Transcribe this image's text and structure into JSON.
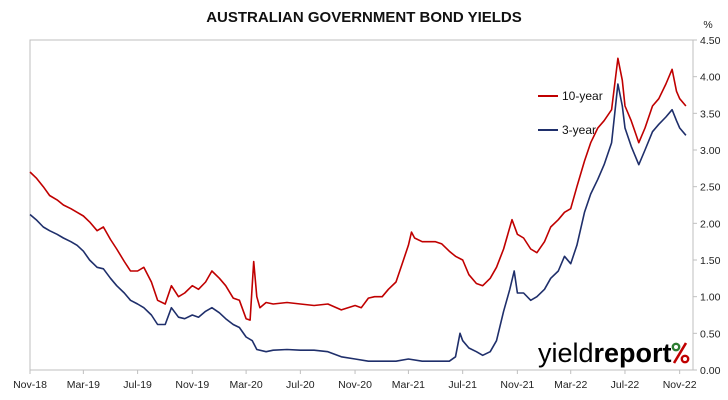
{
  "chart_data": {
    "type": "line",
    "title": "AUSTRALIAN GOVERNMENT BOND YIELDS",
    "ylabel": "%",
    "ylim": [
      0,
      4.5
    ],
    "y_ticks": [
      "0.00",
      "0.50",
      "1.00",
      "1.50",
      "2.00",
      "2.50",
      "3.00",
      "3.50",
      "4.00",
      "4.50"
    ],
    "y_axis_position": "right",
    "grid": false,
    "legend_placement": "top-right",
    "x_domain": [
      "2018-11-01",
      "2022-12-01"
    ],
    "x_ticks": [
      {
        "date": "2018-11-01",
        "label": "Nov-18"
      },
      {
        "date": "2019-03-01",
        "label": "Mar-19"
      },
      {
        "date": "2019-07-01",
        "label": "Jul-19"
      },
      {
        "date": "2019-11-01",
        "label": "Nov-19"
      },
      {
        "date": "2020-03-01",
        "label": "Mar-20"
      },
      {
        "date": "2020-07-01",
        "label": "Jul-20"
      },
      {
        "date": "2020-11-01",
        "label": "Nov-20"
      },
      {
        "date": "2021-03-01",
        "label": "Mar-21"
      },
      {
        "date": "2021-07-01",
        "label": "Jul-21"
      },
      {
        "date": "2021-11-01",
        "label": "Nov-21"
      },
      {
        "date": "2022-03-01",
        "label": "Mar-22"
      },
      {
        "date": "2022-07-01",
        "label": "Jul-22"
      },
      {
        "date": "2022-11-01",
        "label": "Nov-22"
      }
    ],
    "series": [
      {
        "name": "10-year",
        "color": "#c00000",
        "points": [
          [
            "2018-11-01",
            2.7
          ],
          [
            "2018-11-15",
            2.62
          ],
          [
            "2018-12-01",
            2.5
          ],
          [
            "2018-12-15",
            2.38
          ],
          [
            "2019-01-01",
            2.32
          ],
          [
            "2019-01-15",
            2.25
          ],
          [
            "2019-02-01",
            2.2
          ],
          [
            "2019-02-15",
            2.15
          ],
          [
            "2019-03-01",
            2.1
          ],
          [
            "2019-03-15",
            2.02
          ],
          [
            "2019-04-01",
            1.9
          ],
          [
            "2019-04-15",
            1.95
          ],
          [
            "2019-05-01",
            1.78
          ],
          [
            "2019-05-15",
            1.65
          ],
          [
            "2019-06-01",
            1.48
          ],
          [
            "2019-06-15",
            1.35
          ],
          [
            "2019-07-01",
            1.35
          ],
          [
            "2019-07-15",
            1.4
          ],
          [
            "2019-08-01",
            1.2
          ],
          [
            "2019-08-15",
            0.95
          ],
          [
            "2019-09-01",
            0.9
          ],
          [
            "2019-09-15",
            1.15
          ],
          [
            "2019-10-01",
            1.0
          ],
          [
            "2019-10-15",
            1.05
          ],
          [
            "2019-11-01",
            1.15
          ],
          [
            "2019-11-15",
            1.1
          ],
          [
            "2019-12-01",
            1.2
          ],
          [
            "2019-12-15",
            1.35
          ],
          [
            "2020-01-01",
            1.25
          ],
          [
            "2020-01-15",
            1.15
          ],
          [
            "2020-02-01",
            0.98
          ],
          [
            "2020-02-15",
            0.95
          ],
          [
            "2020-03-01",
            0.7
          ],
          [
            "2020-03-10",
            0.68
          ],
          [
            "2020-03-18",
            1.48
          ],
          [
            "2020-03-25",
            1.0
          ],
          [
            "2020-04-01",
            0.85
          ],
          [
            "2020-04-15",
            0.92
          ],
          [
            "2020-05-01",
            0.9
          ],
          [
            "2020-06-01",
            0.92
          ],
          [
            "2020-07-01",
            0.9
          ],
          [
            "2020-08-01",
            0.88
          ],
          [
            "2020-09-01",
            0.9
          ],
          [
            "2020-10-01",
            0.82
          ],
          [
            "2020-11-01",
            0.88
          ],
          [
            "2020-11-15",
            0.85
          ],
          [
            "2020-12-01",
            0.98
          ],
          [
            "2020-12-15",
            1.0
          ],
          [
            "2021-01-01",
            1.0
          ],
          [
            "2021-01-15",
            1.1
          ],
          [
            "2021-02-01",
            1.2
          ],
          [
            "2021-02-15",
            1.45
          ],
          [
            "2021-03-01",
            1.7
          ],
          [
            "2021-03-08",
            1.88
          ],
          [
            "2021-03-15",
            1.8
          ],
          [
            "2021-04-01",
            1.75
          ],
          [
            "2021-05-01",
            1.75
          ],
          [
            "2021-05-15",
            1.72
          ],
          [
            "2021-06-01",
            1.62
          ],
          [
            "2021-06-15",
            1.55
          ],
          [
            "2021-07-01",
            1.5
          ],
          [
            "2021-07-15",
            1.3
          ],
          [
            "2021-08-01",
            1.18
          ],
          [
            "2021-08-15",
            1.15
          ],
          [
            "2021-09-01",
            1.25
          ],
          [
            "2021-09-15",
            1.4
          ],
          [
            "2021-10-01",
            1.65
          ],
          [
            "2021-10-20",
            2.05
          ],
          [
            "2021-11-01",
            1.85
          ],
          [
            "2021-11-15",
            1.8
          ],
          [
            "2021-12-01",
            1.65
          ],
          [
            "2021-12-15",
            1.6
          ],
          [
            "2022-01-01",
            1.75
          ],
          [
            "2022-01-15",
            1.95
          ],
          [
            "2022-02-01",
            2.05
          ],
          [
            "2022-02-15",
            2.15
          ],
          [
            "2022-03-01",
            2.2
          ],
          [
            "2022-03-15",
            2.5
          ],
          [
            "2022-04-01",
            2.85
          ],
          [
            "2022-04-15",
            3.1
          ],
          [
            "2022-05-01",
            3.3
          ],
          [
            "2022-05-15",
            3.4
          ],
          [
            "2022-06-01",
            3.55
          ],
          [
            "2022-06-15",
            4.25
          ],
          [
            "2022-06-25",
            3.95
          ],
          [
            "2022-07-01",
            3.6
          ],
          [
            "2022-07-15",
            3.4
          ],
          [
            "2022-08-01",
            3.1
          ],
          [
            "2022-08-15",
            3.3
          ],
          [
            "2022-09-01",
            3.6
          ],
          [
            "2022-09-15",
            3.7
          ],
          [
            "2022-10-01",
            3.9
          ],
          [
            "2022-10-15",
            4.1
          ],
          [
            "2022-10-25",
            3.8
          ],
          [
            "2022-11-01",
            3.7
          ],
          [
            "2022-11-15",
            3.6
          ]
        ]
      },
      {
        "name": "3-year",
        "color": "#1f2f6b",
        "points": [
          [
            "2018-11-01",
            2.12
          ],
          [
            "2018-11-15",
            2.05
          ],
          [
            "2018-12-01",
            1.95
          ],
          [
            "2018-12-15",
            1.9
          ],
          [
            "2019-01-01",
            1.85
          ],
          [
            "2019-01-15",
            1.8
          ],
          [
            "2019-02-01",
            1.75
          ],
          [
            "2019-02-15",
            1.7
          ],
          [
            "2019-03-01",
            1.62
          ],
          [
            "2019-03-15",
            1.5
          ],
          [
            "2019-04-01",
            1.4
          ],
          [
            "2019-04-15",
            1.38
          ],
          [
            "2019-05-01",
            1.25
          ],
          [
            "2019-05-15",
            1.15
          ],
          [
            "2019-06-01",
            1.05
          ],
          [
            "2019-06-15",
            0.95
          ],
          [
            "2019-07-01",
            0.9
          ],
          [
            "2019-07-15",
            0.85
          ],
          [
            "2019-08-01",
            0.75
          ],
          [
            "2019-08-15",
            0.62
          ],
          [
            "2019-09-01",
            0.62
          ],
          [
            "2019-09-15",
            0.85
          ],
          [
            "2019-10-01",
            0.72
          ],
          [
            "2019-10-15",
            0.7
          ],
          [
            "2019-11-01",
            0.75
          ],
          [
            "2019-11-15",
            0.72
          ],
          [
            "2019-12-01",
            0.8
          ],
          [
            "2019-12-15",
            0.85
          ],
          [
            "2020-01-01",
            0.78
          ],
          [
            "2020-01-15",
            0.7
          ],
          [
            "2020-02-01",
            0.62
          ],
          [
            "2020-02-15",
            0.58
          ],
          [
            "2020-03-01",
            0.45
          ],
          [
            "2020-03-15",
            0.4
          ],
          [
            "2020-03-25",
            0.28
          ],
          [
            "2020-04-15",
            0.25
          ],
          [
            "2020-05-01",
            0.27
          ],
          [
            "2020-06-01",
            0.28
          ],
          [
            "2020-07-01",
            0.27
          ],
          [
            "2020-08-01",
            0.27
          ],
          [
            "2020-09-01",
            0.25
          ],
          [
            "2020-10-01",
            0.18
          ],
          [
            "2020-11-01",
            0.15
          ],
          [
            "2020-12-01",
            0.12
          ],
          [
            "2021-01-01",
            0.12
          ],
          [
            "2021-02-01",
            0.12
          ],
          [
            "2021-03-01",
            0.15
          ],
          [
            "2021-04-01",
            0.12
          ],
          [
            "2021-05-01",
            0.12
          ],
          [
            "2021-06-01",
            0.12
          ],
          [
            "2021-06-15",
            0.18
          ],
          [
            "2021-06-25",
            0.5
          ],
          [
            "2021-07-01",
            0.4
          ],
          [
            "2021-07-15",
            0.3
          ],
          [
            "2021-08-01",
            0.25
          ],
          [
            "2021-08-15",
            0.2
          ],
          [
            "2021-09-01",
            0.25
          ],
          [
            "2021-09-15",
            0.4
          ],
          [
            "2021-10-01",
            0.8
          ],
          [
            "2021-10-15",
            1.1
          ],
          [
            "2021-10-25",
            1.35
          ],
          [
            "2021-11-01",
            1.05
          ],
          [
            "2021-11-15",
            1.05
          ],
          [
            "2021-12-01",
            0.95
          ],
          [
            "2021-12-15",
            1.0
          ],
          [
            "2022-01-01",
            1.1
          ],
          [
            "2022-01-15",
            1.25
          ],
          [
            "2022-02-01",
            1.35
          ],
          [
            "2022-02-15",
            1.55
          ],
          [
            "2022-03-01",
            1.45
          ],
          [
            "2022-03-15",
            1.7
          ],
          [
            "2022-04-01",
            2.15
          ],
          [
            "2022-04-15",
            2.4
          ],
          [
            "2022-05-01",
            2.6
          ],
          [
            "2022-05-15",
            2.8
          ],
          [
            "2022-06-01",
            3.1
          ],
          [
            "2022-06-15",
            3.9
          ],
          [
            "2022-06-25",
            3.6
          ],
          [
            "2022-07-01",
            3.3
          ],
          [
            "2022-07-15",
            3.05
          ],
          [
            "2022-08-01",
            2.8
          ],
          [
            "2022-08-15",
            3.0
          ],
          [
            "2022-09-01",
            3.25
          ],
          [
            "2022-09-15",
            3.35
          ],
          [
            "2022-10-01",
            3.45
          ],
          [
            "2022-10-15",
            3.55
          ],
          [
            "2022-10-25",
            3.4
          ],
          [
            "2022-11-01",
            3.3
          ],
          [
            "2022-11-15",
            3.2
          ]
        ]
      }
    ]
  },
  "logo": {
    "word_light": "yield",
    "word_bold": "report",
    "symbol": "%",
    "colors": {
      "light": "#111111",
      "bold": "#111111",
      "symbol_top": "#2e7d32",
      "symbol_bottom": "#c00000"
    }
  }
}
